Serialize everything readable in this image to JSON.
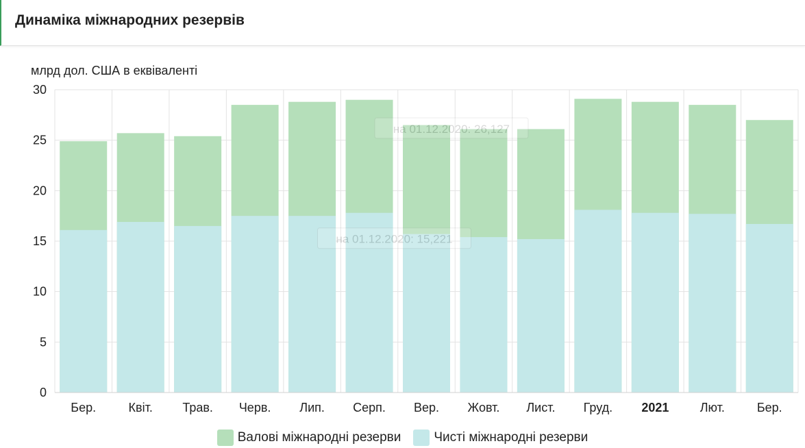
{
  "header": {
    "title": "Динаміка міжнародних резервів"
  },
  "chart_data": {
    "type": "bar",
    "stacked": false,
    "title": "Динаміка міжнародних резервів",
    "ylabel": "млрд дол. США в еквіваленті",
    "xlabel": "",
    "ylim": [
      0,
      30
    ],
    "yticks": [
      0,
      5,
      10,
      15,
      20,
      25,
      30
    ],
    "grid": true,
    "legend_position": "bottom",
    "categories": [
      "Бер.",
      "Квіт.",
      "Трав.",
      "Черв.",
      "Лип.",
      "Серп.",
      "Вер.",
      "Жовт.",
      "Лист.",
      "Груд.",
      "2021",
      "Лют.",
      "Бер."
    ],
    "bold_categories": [
      "2021"
    ],
    "series": [
      {
        "name": "Валові міжнародні резерви",
        "color": "#b5dfba",
        "values": [
          24.9,
          25.7,
          25.4,
          28.5,
          28.8,
          29.0,
          26.5,
          26.1,
          26.1,
          29.1,
          28.8,
          28.5,
          27.0
        ]
      },
      {
        "name": "Чисті міжнародні резерви",
        "color": "#c4e8e9",
        "values": [
          16.1,
          16.9,
          16.5,
          17.5,
          17.5,
          17.8,
          15.7,
          15.4,
          15.2,
          18.1,
          17.8,
          17.7,
          16.7
        ]
      }
    ],
    "tooltips": [
      {
        "text": "на 01.12.2020: 26,127",
        "value": 26.127,
        "category_index": 7
      },
      {
        "text": "на 01.12.2020: 15,221",
        "value": 15.221,
        "category_index": 6
      }
    ]
  }
}
